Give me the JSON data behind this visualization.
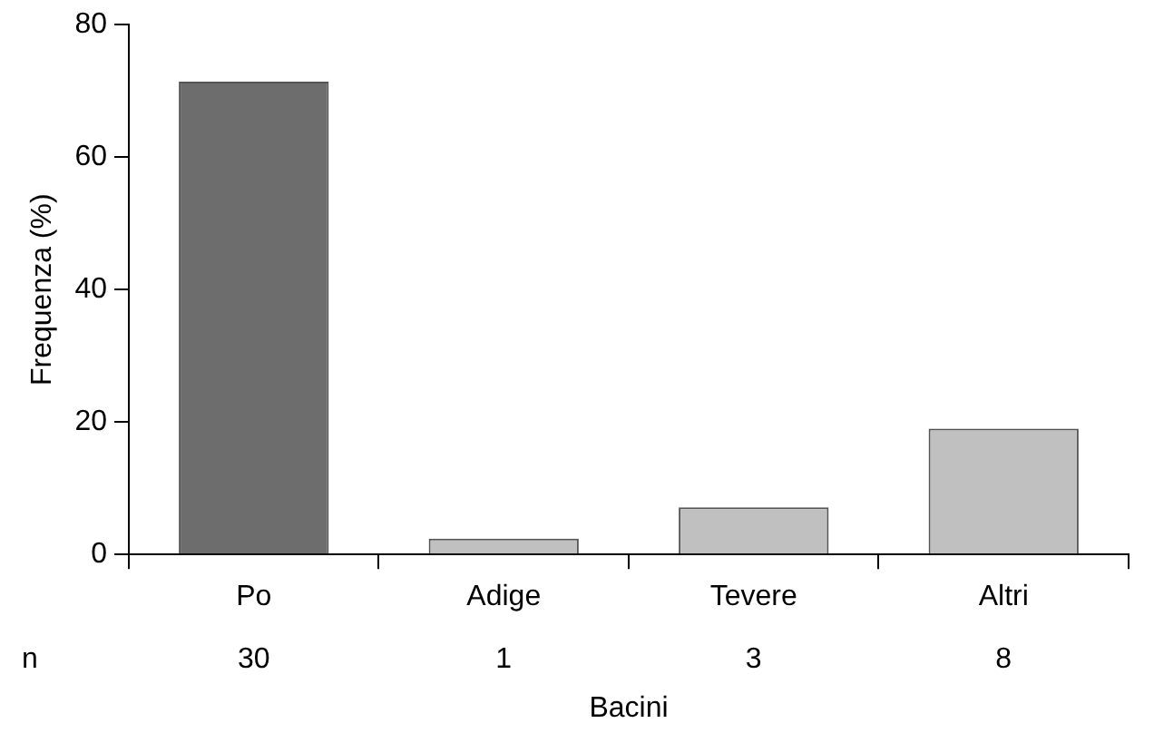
{
  "chart_data": {
    "type": "bar",
    "xlabel": "Bacini",
    "ylabel": "Frequenza (%)",
    "categories": [
      "Po",
      "Adige",
      "Tevere",
      "Altri"
    ],
    "values": [
      71.4,
      2.4,
      7.1,
      19.0
    ],
    "colors": [
      "#6d6d6d",
      "#c0c0c0",
      "#c0c0c0",
      "#c0c0c0"
    ],
    "ylim": [
      0,
      80
    ],
    "yticks": [
      0,
      20,
      40,
      60,
      80
    ],
    "grid": false,
    "legend": false,
    "annotations": [
      "n",
      "30",
      "1",
      "3",
      "8"
    ]
  }
}
